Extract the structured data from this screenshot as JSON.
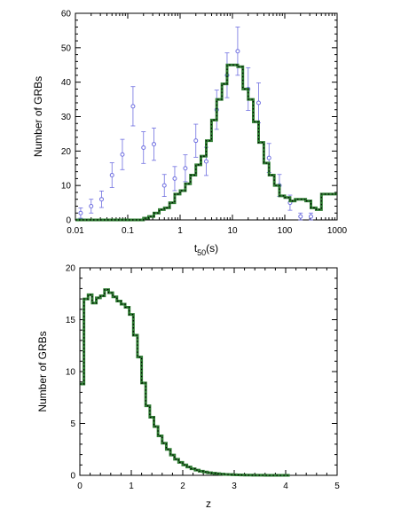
{
  "chart_data": [
    {
      "type": "line",
      "x_scale": "log",
      "xlabel": "t",
      "xlabel_sub": "50",
      "xlabel_suffix": "(s)",
      "ylabel": "Number of GRBs",
      "xlim": [
        0.01,
        1000
      ],
      "ylim": [
        0,
        60
      ],
      "x_tick_labels": [
        {
          "value": 0.01,
          "label": "0.01"
        },
        {
          "value": 0.1,
          "label": "0.1"
        },
        {
          "value": 1,
          "label": "1"
        },
        {
          "value": 10,
          "label": "10"
        },
        {
          "value": 100,
          "label": "100"
        },
        {
          "value": 1000,
          "label": "1000"
        }
      ],
      "y_tick_labels": [
        {
          "value": 0,
          "label": "0"
        },
        {
          "value": 10,
          "label": "10"
        },
        {
          "value": 20,
          "label": "20"
        },
        {
          "value": 30,
          "label": "30"
        },
        {
          "value": 40,
          "label": "40"
        },
        {
          "value": 50,
          "label": "50"
        },
        {
          "value": 60,
          "label": "60"
        }
      ],
      "colors": {
        "points": "#6f6fe0",
        "step": "#2e7d32",
        "step_dots": "#000000"
      },
      "series": [
        {
          "type": "scatter_errorbars",
          "points": [
            {
              "x": 0.0126,
              "y": 2,
              "err": 1.5
            },
            {
              "x": 0.02,
              "y": 4,
              "err": 2
            },
            {
              "x": 0.0316,
              "y": 6,
              "err": 2.4
            },
            {
              "x": 0.05,
              "y": 13,
              "err": 3.6
            },
            {
              "x": 0.079,
              "y": 19,
              "err": 4.4
            },
            {
              "x": 0.126,
              "y": 33,
              "err": 5.7
            },
            {
              "x": 0.2,
              "y": 21,
              "err": 4.6
            },
            {
              "x": 0.316,
              "y": 22,
              "err": 4.7
            },
            {
              "x": 0.5,
              "y": 10,
              "err": 3.2
            },
            {
              "x": 0.79,
              "y": 12,
              "err": 3.5
            },
            {
              "x": 1.26,
              "y": 15,
              "err": 3.9
            },
            {
              "x": 2.0,
              "y": 23,
              "err": 4.8
            },
            {
              "x": 3.16,
              "y": 17,
              "err": 4.1
            },
            {
              "x": 5.0,
              "y": 32,
              "err": 5.7
            },
            {
              "x": 7.9,
              "y": 42,
              "err": 6.5
            },
            {
              "x": 12.6,
              "y": 49,
              "err": 7
            },
            {
              "x": 20,
              "y": 38,
              "err": 6.2
            },
            {
              "x": 31.6,
              "y": 34,
              "err": 5.8
            },
            {
              "x": 50,
              "y": 18,
              "err": 4.2
            },
            {
              "x": 79,
              "y": 10,
              "err": 3.2
            },
            {
              "x": 126,
              "y": 5,
              "err": 2.2
            },
            {
              "x": 200,
              "y": 1,
              "err": 1
            },
            {
              "x": 316,
              "y": 1,
              "err": 1
            }
          ]
        },
        {
          "type": "step",
          "x_edges": [
            0.01,
            0.2,
            0.25,
            0.316,
            0.4,
            0.5,
            0.63,
            0.79,
            1.0,
            1.26,
            1.58,
            2.0,
            2.5,
            3.16,
            3.98,
            5.0,
            6.3,
            7.9,
            10,
            12.6,
            15.8,
            20,
            25,
            31.6,
            39.8,
            50,
            63,
            79,
            100,
            126,
            158,
            200,
            251,
            316,
            398,
            501,
            631,
            1000
          ],
          "values": [
            0,
            0.5,
            1,
            2,
            3,
            3.5,
            5,
            7.5,
            8.5,
            10.5,
            13,
            16,
            18.5,
            23,
            29,
            35,
            39.5,
            45,
            45,
            44.5,
            38,
            35,
            28.5,
            22.5,
            16.5,
            13,
            10,
            7,
            6.5,
            5.5,
            6,
            6,
            5.5,
            3.5,
            3,
            7.5,
            7.5
          ]
        }
      ]
    },
    {
      "type": "line",
      "xlabel": "z",
      "ylabel": "Number of GRBs",
      "xlim": [
        0,
        5
      ],
      "ylim": [
        0,
        20
      ],
      "x_tick_labels": [
        {
          "value": 0,
          "label": "0"
        },
        {
          "value": 1,
          "label": "1"
        },
        {
          "value": 2,
          "label": "2"
        },
        {
          "value": 3,
          "label": "3"
        },
        {
          "value": 4,
          "label": "4"
        },
        {
          "value": 5,
          "label": "5"
        }
      ],
      "y_tick_labels": [
        {
          "value": 0,
          "label": "0"
        },
        {
          "value": 5,
          "label": "5"
        },
        {
          "value": 10,
          "label": "10"
        },
        {
          "value": 15,
          "label": "15"
        },
        {
          "value": 20,
          "label": "20"
        }
      ],
      "colors": {
        "step": "#2e7d32",
        "step_dots": "#000000"
      },
      "series": [
        {
          "type": "step",
          "x_edges": [
            0.0,
            0.08,
            0.16,
            0.24,
            0.32,
            0.4,
            0.48,
            0.56,
            0.64,
            0.72,
            0.8,
            0.88,
            0.96,
            1.04,
            1.12,
            1.2,
            1.28,
            1.36,
            1.44,
            1.52,
            1.6,
            1.68,
            1.76,
            1.84,
            1.92,
            2.0,
            2.08,
            2.16,
            2.24,
            2.32,
            2.4,
            2.48,
            2.56,
            2.64,
            2.72,
            2.8,
            2.88,
            2.96,
            3.04,
            3.12,
            3.2,
            3.28,
            3.36,
            3.44,
            3.52,
            3.6,
            3.68,
            3.76,
            3.84,
            3.92,
            4.0,
            4.08
          ],
          "values": [
            8.8,
            17.0,
            17.4,
            16.6,
            17.1,
            17.3,
            17.9,
            17.6,
            17.2,
            16.8,
            16.5,
            16.2,
            15.5,
            13.5,
            11.4,
            8.9,
            6.7,
            5.6,
            4.7,
            3.8,
            3.1,
            2.5,
            1.95,
            1.55,
            1.25,
            1.0,
            0.8,
            0.63,
            0.5,
            0.4,
            0.32,
            0.25,
            0.2,
            0.16,
            0.12,
            0.09,
            0.07,
            0.055,
            0.04,
            0.03,
            0.022,
            0.016,
            0.012,
            0.009,
            0.006,
            0.004,
            0.003,
            0.002,
            0.001,
            0.001,
            0.0
          ]
        }
      ]
    }
  ]
}
